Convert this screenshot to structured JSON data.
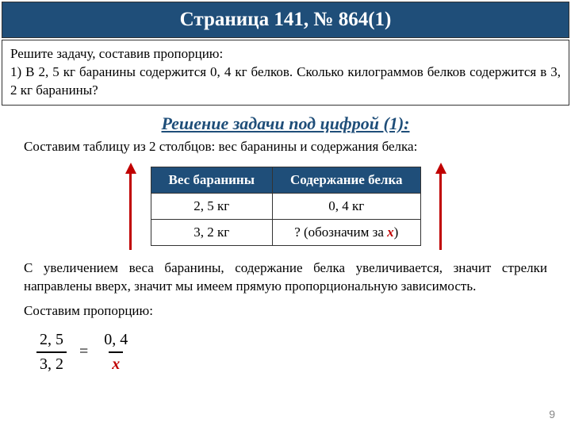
{
  "title": "Страница 141, № 864(1)",
  "problem": {
    "line1": "Решите задачу, составив пропорцию:",
    "line2": "1) В 2, 5 кг баранины содержится 0, 4 кг белков. Сколько килограммов белков содержится в 3, 2 кг баранины?"
  },
  "solution_heading": "Решение задачи под цифрой (1):",
  "caption": "Составим таблицу из 2 столбцов: вес баранины и содержания белка:",
  "table": {
    "header_color": "#1f4e79",
    "border_color": "#333333",
    "columns": [
      "Вес баранины",
      "Содержание белка"
    ],
    "rows": [
      [
        "2, 5 кг",
        "0, 4 кг"
      ],
      [
        "3, 2 кг",
        "? (обозначим за "
      ]
    ],
    "x_label": "x",
    "close_paren": ")"
  },
  "arrow_color": "#c00000",
  "explain": {
    "p1": "С увеличением веса баранины, содержание белка увеличивается, значит стрелки направлены вверх, значит мы имеем прямую пропорциональную зависимость.",
    "p2": "Составим пропорцию:"
  },
  "proportion": {
    "left_num": "2, 5",
    "left_den": "3, 2",
    "eq": "=",
    "right_num": "0, 4",
    "right_den": "x"
  },
  "page_number": "9"
}
